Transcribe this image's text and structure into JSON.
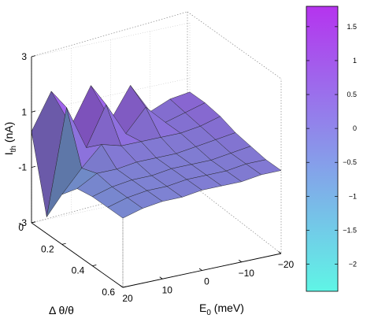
{
  "chart_data": {
    "type": "surface",
    "z_axis": {
      "label_main": "I",
      "label_sub": "th",
      "label_unit": " (nA)",
      "ticks": [
        3,
        1,
        -1,
        -3
      ],
      "range": [
        -3,
        3
      ]
    },
    "x_axis": {
      "label_main": "E",
      "label_sub": "0",
      "label_unit": " (meV)",
      "ticks": [
        20,
        10,
        0,
        -10,
        -20
      ],
      "range": [
        20,
        -20
      ]
    },
    "y_axis": {
      "label": "Δ θ/θ",
      "ticks": [
        0,
        0.2,
        0.4,
        0.6
      ],
      "range": [
        0,
        0.6
      ]
    },
    "colorbar": {
      "ticks": [
        1.5,
        1,
        0.5,
        0,
        -0.5,
        -1,
        -1.5,
        -2
      ],
      "tick_labels": [
        "1.5",
        "1",
        "0.5",
        "0",
        "−0.5",
        "−1",
        "−1.5",
        "−2"
      ],
      "range": [
        -2.4,
        1.8
      ],
      "colormap": "cool",
      "color_low": "#5ff5e6",
      "color_high": "#b534ee"
    },
    "grid": "on",
    "surface_description": "thermoelectric current vs E0 and dtheta/theta; oscillating ridges for small dtheta/theta that flatten to a plateau near 0 nA for larger dtheta/theta",
    "samples": {
      "E0": [
        20,
        15,
        10,
        5,
        0,
        -5,
        -10,
        -15,
        -20
      ],
      "dtheta": [
        0,
        0.1,
        0.2,
        0.3,
        0.4,
        0.5,
        0.6
      ],
      "Ith": [
        [
          0.3,
          1.6,
          0.2,
          1.5,
          0.1,
          1.2,
          0.1,
          0.4,
          0.5
        ],
        [
          -2.4,
          1.4,
          -0.2,
          1.2,
          0.0,
          0.8,
          0.1,
          0.3,
          0.5
        ],
        [
          -1.2,
          -0.4,
          0.3,
          0.1,
          0.1,
          0.1,
          0.1,
          0.2,
          0.4
        ],
        [
          -0.6,
          -0.2,
          -0.2,
          -0.1,
          -0.1,
          -0.1,
          0.0,
          0.1,
          0.2
        ],
        [
          -0.5,
          -0.3,
          -0.2,
          -0.2,
          -0.1,
          -0.1,
          -0.1,
          0.0,
          0.1
        ],
        [
          -0.5,
          -0.3,
          -0.2,
          -0.2,
          -0.1,
          -0.1,
          -0.1,
          0.0,
          0.0
        ],
        [
          -0.5,
          -0.3,
          -0.2,
          -0.2,
          -0.1,
          -0.1,
          -0.1,
          0.0,
          0.0
        ]
      ]
    }
  }
}
